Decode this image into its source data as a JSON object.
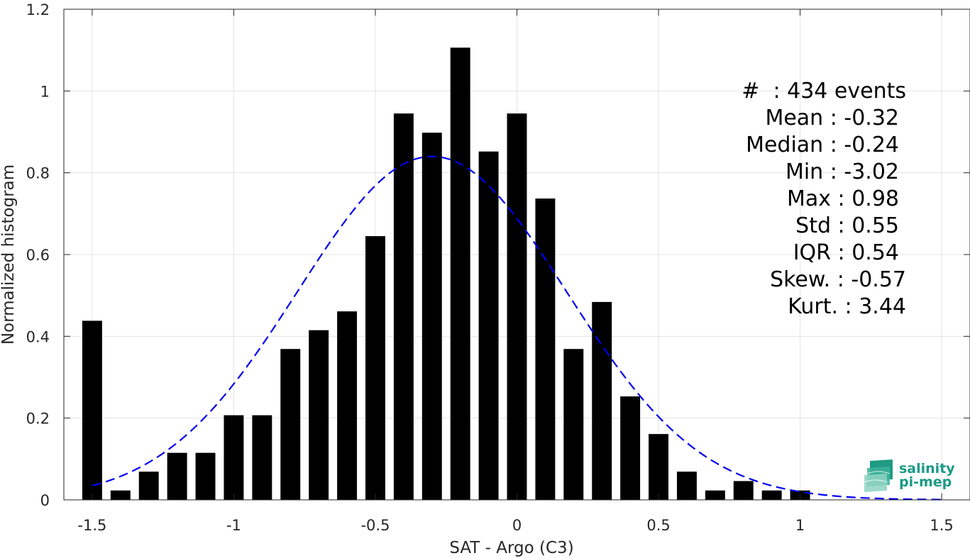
{
  "chart_data": {
    "type": "bar",
    "xlabel": "SAT - Argo (C3)",
    "ylabel": "Normalized histogram",
    "xlim": [
      -1.6,
      1.6
    ],
    "ylim": [
      0,
      1.2
    ],
    "xticks": [
      -1.5,
      -1,
      -0.5,
      0,
      0.5,
      1,
      1.5
    ],
    "xtick_labels": [
      "-1.5",
      "-1",
      "-0.5",
      "0",
      "0.5",
      "1",
      "1.5"
    ],
    "yticks": [
      0,
      0.2,
      0.4,
      0.6,
      0.8,
      1,
      1.2
    ],
    "ytick_labels": [
      "0",
      "0.2",
      "0.4",
      "0.6",
      "0.8",
      "1",
      "1.2"
    ],
    "grid": true,
    "bin_width": 0.1,
    "x": [
      -1.5,
      -1.4,
      -1.3,
      -1.2,
      -1.1,
      -1.0,
      -0.9,
      -0.8,
      -0.7,
      -0.6,
      -0.5,
      -0.4,
      -0.3,
      -0.2,
      -0.1,
      0.0,
      0.1,
      0.2,
      0.3,
      0.4,
      0.5,
      0.6,
      0.7,
      0.8,
      0.9,
      1.0
    ],
    "values": [
      0.438,
      0.023,
      0.069,
      0.115,
      0.115,
      0.207,
      0.207,
      0.369,
      0.415,
      0.461,
      0.645,
      0.945,
      0.898,
      1.106,
      0.852,
      0.945,
      0.737,
      0.369,
      0.484,
      0.253,
      0.161,
      0.069,
      0.023,
      0.046,
      0.023,
      0.023
    ],
    "fit": {
      "type": "gaussian",
      "style": "dashed",
      "color": "#0000ee",
      "mean": -0.3,
      "std": 0.475,
      "peak": 0.84,
      "x_range": [
        -1.5,
        1.5
      ]
    },
    "bar_color": "#000000"
  },
  "stats": [
    "#  : 434 events",
    "Mean : -0.32",
    "Median : -0.24",
    "Min : -3.02",
    "Max : 0.98",
    "Std : 0.55",
    "IQR : 0.54",
    "Skew. : -0.57",
    "Kurt. : 3.44"
  ],
  "logo": {
    "line1": "salinity",
    "line2": "pi-mep"
  }
}
